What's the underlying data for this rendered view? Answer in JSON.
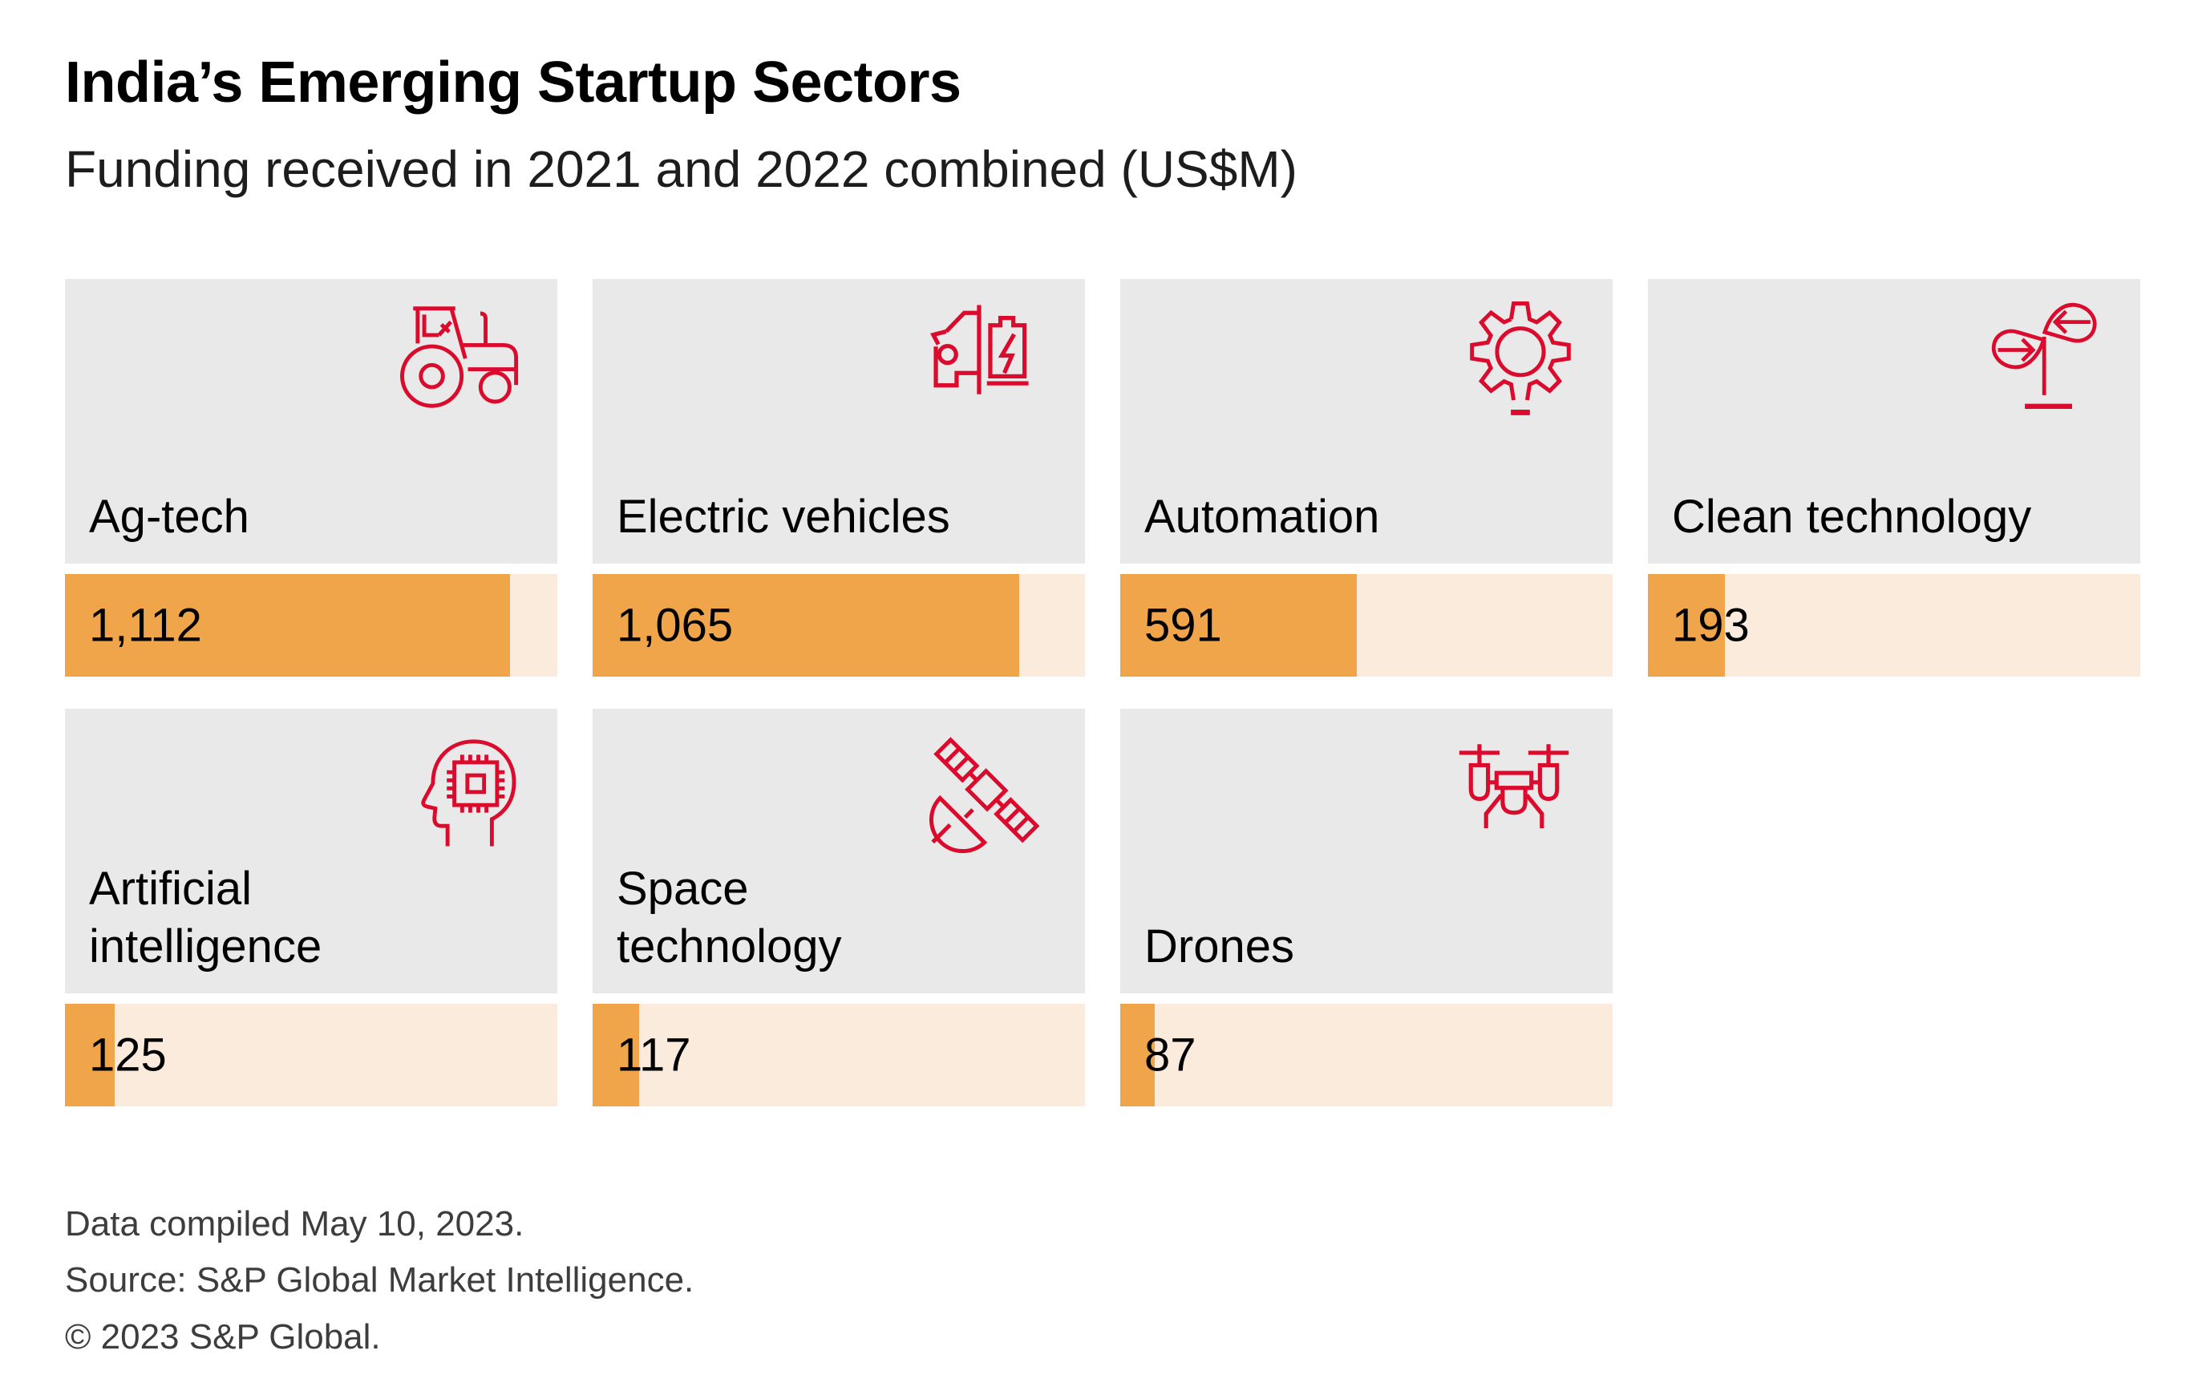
{
  "header": {
    "title": "India’s Emerging Startup Sectors",
    "subtitle": "Funding received in 2021 and 2022 combined (US$M)"
  },
  "chart_data": {
    "type": "bar",
    "title": "India’s Emerging Startup Sectors",
    "subtitle": "Funding received in 2021 and 2022 combined (US$M)",
    "unit": "US$M",
    "categories": [
      "Ag-tech",
      "Electric vehicles",
      "Automation",
      "Clean technology",
      "Artificial intelligence",
      "Space technology",
      "Drones"
    ],
    "values": [
      1112,
      1065,
      591,
      193,
      125,
      117,
      87
    ],
    "value_labels": [
      "1,112",
      "1,065",
      "591",
      "193",
      "125",
      "117",
      "87"
    ],
    "xlim": [
      0,
      1230
    ],
    "grid": false,
    "legend": false,
    "orientation": "horizontal",
    "layout": "4-column card grid, 2 rows"
  },
  "main": {
    "cards": [
      {
        "label_lines": [
          "Ag-tech"
        ],
        "value_label": "1,112",
        "icon": "tractor"
      },
      {
        "label_lines": [
          "Electric vehicles"
        ],
        "value_label": "1,065",
        "icon": "electric-vehicle"
      },
      {
        "label_lines": [
          "Automation"
        ],
        "value_label": "591",
        "icon": "gear"
      },
      {
        "label_lines": [
          "Clean technology"
        ],
        "value_label": "193",
        "icon": "clean-technology"
      },
      {
        "label_lines": [
          "Artificial",
          "intelligence"
        ],
        "value_label": "125",
        "icon": "ai-head-chip"
      },
      {
        "label_lines": [
          "Space",
          "technology"
        ],
        "value_label": "117",
        "icon": "satellite"
      },
      {
        "label_lines": [
          "Drones"
        ],
        "value_label": "87",
        "icon": "drone"
      }
    ]
  },
  "footer": {
    "lines": [
      "Data compiled May 10, 2023.",
      "Source: S&P Global Market Intelligence.",
      "© 2023 S&P Global."
    ]
  },
  "colors": {
    "background": "#FFFFFF",
    "card_bg": "#E9E9E9",
    "bar_fill": "#F0A54A",
    "bar_track": "#FAEBDC",
    "icon_red": "#DA0B2D",
    "text": "#000000",
    "subtitle_text": "#1D1D1D",
    "footer_text": "#3D3D3D"
  }
}
